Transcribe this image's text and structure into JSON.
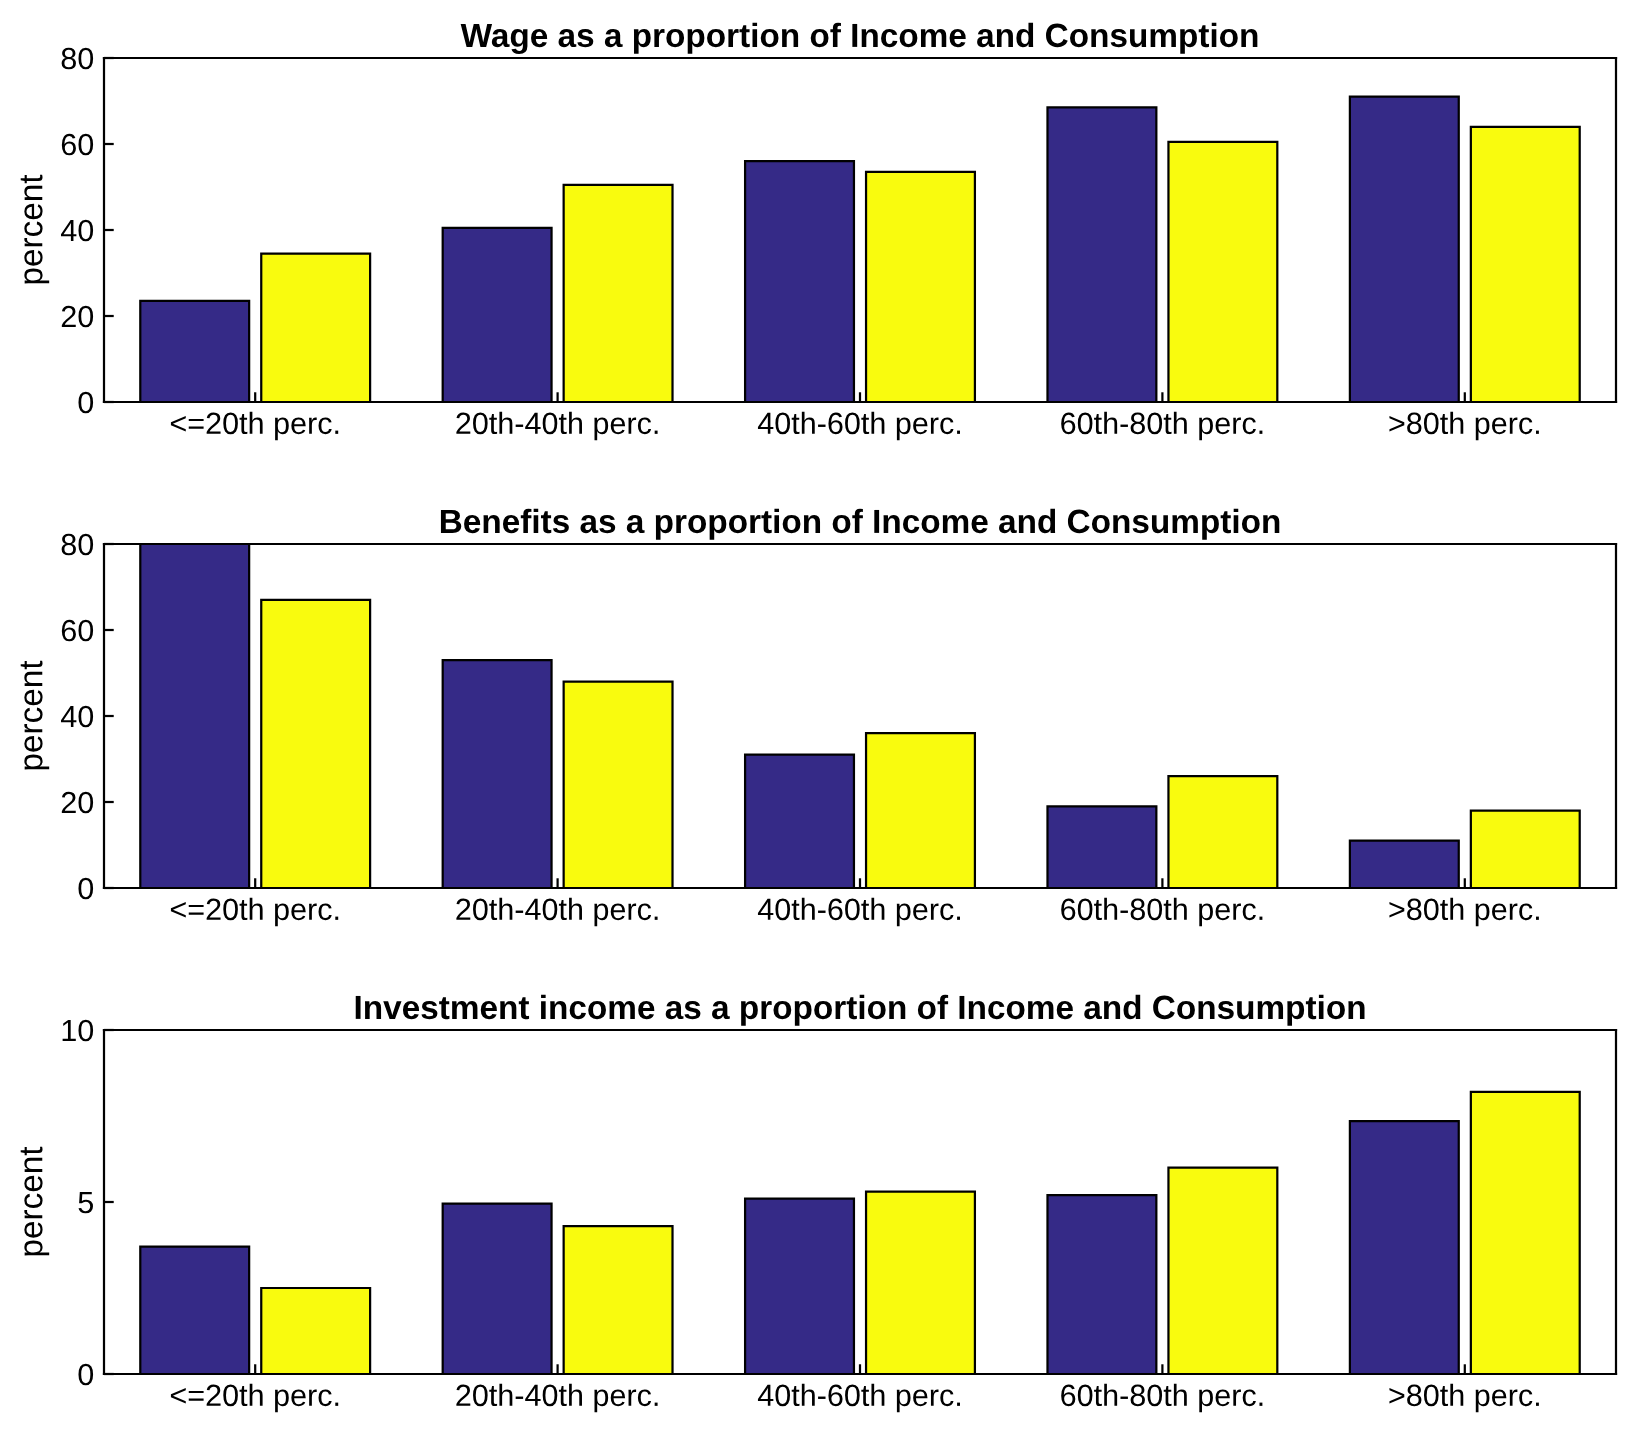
{
  "chart_data": [
    {
      "type": "bar",
      "title": "Wage as a proportion of Income and Consumption",
      "ylabel": "percent",
      "categories": [
        "<=20th perc.",
        "20th-40th perc.",
        "40th-60th perc.",
        "60th-80th perc.",
        ">80th perc."
      ],
      "series": [
        {
          "color": "#352a87",
          "values": [
            23.5,
            40.5,
            56,
            68.5,
            71
          ]
        },
        {
          "color": "#f9fb0e",
          "values": [
            34.5,
            50.5,
            53.5,
            60.5,
            64
          ]
        }
      ],
      "ylim": [
        0,
        80
      ],
      "yticks": [
        0,
        20,
        40,
        60,
        80
      ],
      "grid": false,
      "legend": false
    },
    {
      "type": "bar",
      "title": "Benefits as a proportion of Income and Consumption",
      "ylabel": "percent",
      "categories": [
        "<=20th perc.",
        "20th-40th perc.",
        "40th-60th perc.",
        "60th-80th perc.",
        ">80th perc."
      ],
      "series": [
        {
          "color": "#352a87",
          "values": [
            80,
            53,
            31,
            19,
            11
          ]
        },
        {
          "color": "#f9fb0e",
          "values": [
            67,
            48,
            36,
            26,
            18
          ]
        }
      ],
      "ylim": [
        0,
        80
      ],
      "yticks": [
        0,
        20,
        40,
        60,
        80
      ],
      "grid": false,
      "legend": false
    },
    {
      "type": "bar",
      "title": "Investment income as a proportion of Income and Consumption",
      "ylabel": "percent",
      "categories": [
        "<=20th perc.",
        "20th-40th perc.",
        "40th-60th perc.",
        "60th-80th perc.",
        ">80th perc."
      ],
      "series": [
        {
          "color": "#352a87",
          "values": [
            3.7,
            4.95,
            5.1,
            5.2,
            7.35
          ]
        },
        {
          "color": "#f9fb0e",
          "values": [
            2.5,
            4.3,
            5.3,
            6.0,
            8.2
          ]
        }
      ],
      "ylim": [
        0,
        10
      ],
      "yticks": [
        0,
        5,
        10
      ],
      "grid": false,
      "legend": false
    }
  ]
}
